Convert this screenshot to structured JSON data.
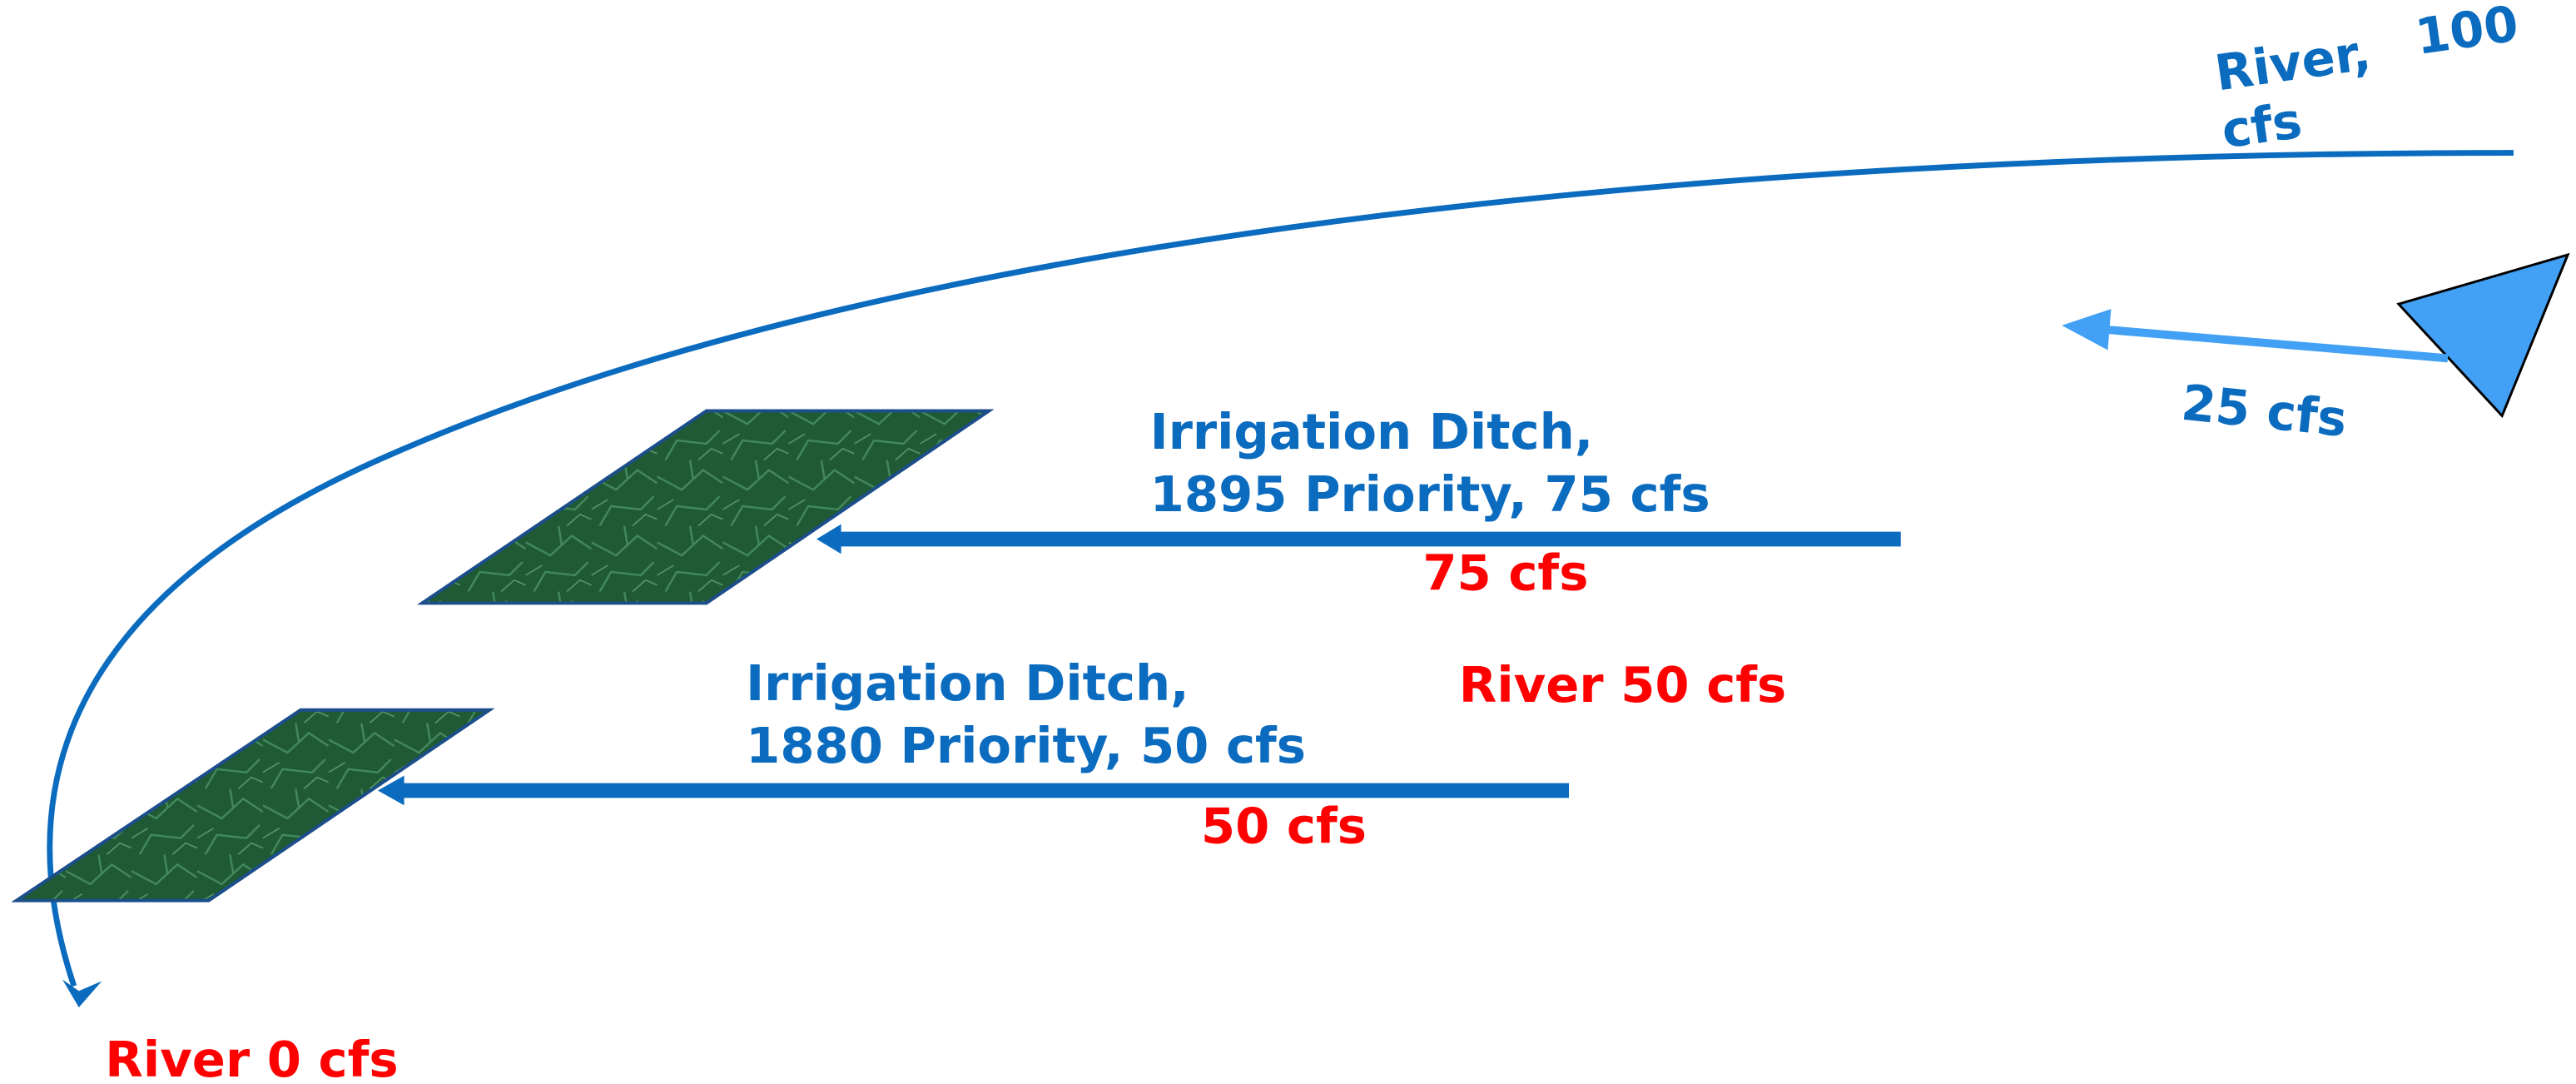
{
  "river_source": {
    "line1": "River,",
    "amount": "100",
    "line2": "cfs"
  },
  "inflow": {
    "label": "25 cfs"
  },
  "ditches": [
    {
      "title": "Irrigation Ditch,",
      "detail": "1895 Priority, 75 cfs",
      "flow": "75 cfs"
    },
    {
      "title": "Irrigation Ditch,",
      "detail": "1880 Priority, 50 cfs",
      "flow": "50 cfs"
    }
  ],
  "river_middle": {
    "label": "River 50 cfs"
  },
  "river_end": {
    "label": "River 0 cfs"
  }
}
